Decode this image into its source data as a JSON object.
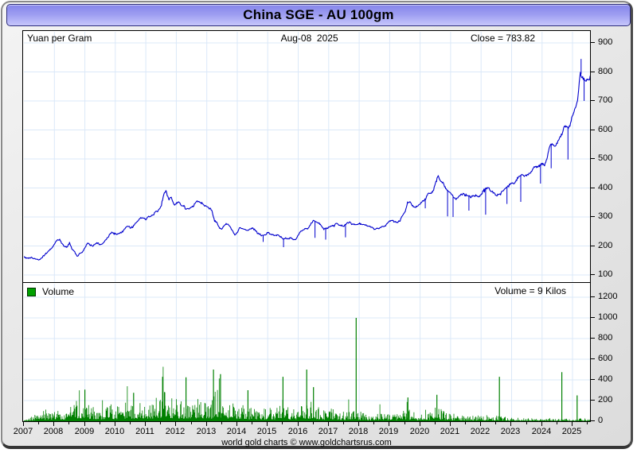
{
  "window": {
    "title": "China SGE - AU 100gm"
  },
  "price_panel": {
    "unit_label": "Yuan per Gram",
    "date_label": "Aug-08  2025",
    "close_label": "Close = 783.82"
  },
  "volume_panel": {
    "legend_label": "Volume",
    "value_label": "Volume = 9 Kilos"
  },
  "footer": {
    "copyright": "world gold charts © www.goldchartsrus.com"
  },
  "colors": {
    "line": "#0000cd",
    "volume": "#008000",
    "legend_square": "#00a000",
    "grid": "#dbe8f8",
    "panel_bg": "#ffffff",
    "frame_bg": "#e7e7e7",
    "title_gradient_top": "#8585ea",
    "title_gradient_bottom": "#c7c7fb"
  },
  "chart_data": [
    {
      "type": "line",
      "name": "SGE Au 100gm price",
      "title": "China SGE - AU 100gm",
      "ylabel": "Yuan per Gram",
      "date": "Aug-08 2025",
      "close": 783.82,
      "grid": true,
      "x_start": 2007.0,
      "x_end": 2025.58,
      "x_step_months": 1,
      "xticks": [
        2007,
        2008,
        2009,
        2010,
        2011,
        2012,
        2013,
        2014,
        2015,
        2016,
        2017,
        2018,
        2019,
        2020,
        2021,
        2022,
        2023,
        2024,
        2025
      ],
      "yticks": [
        100,
        200,
        300,
        400,
        500,
        600,
        700,
        800,
        900
      ],
      "ylim": [
        72,
        941
      ],
      "monthly_values": [
        162,
        159,
        157,
        160,
        156,
        153,
        152,
        158,
        168,
        177,
        184,
        192,
        205,
        219,
        222,
        208,
        198,
        196,
        212,
        188,
        180,
        163,
        173,
        179,
        193,
        211,
        204,
        198,
        206,
        210,
        204,
        208,
        218,
        228,
        244,
        247,
        242,
        240,
        245,
        251,
        263,
        270,
        262,
        266,
        278,
        288,
        296,
        299,
        292,
        300,
        305,
        308,
        319,
        322,
        336,
        376,
        390,
        361,
        368,
        342,
        346,
        352,
        340,
        337,
        325,
        330,
        332,
        340,
        357,
        352,
        348,
        341,
        337,
        330,
        324,
        288,
        281,
        262,
        258,
        272,
        277,
        268,
        255,
        238,
        248,
        263,
        261,
        257,
        252,
        258,
        262,
        255,
        244,
        240,
        235,
        237,
        247,
        242,
        238,
        237,
        238,
        233,
        222,
        226,
        224,
        229,
        222,
        223,
        238,
        252,
        257,
        260,
        262,
        278,
        288,
        282,
        280,
        272,
        258,
        261,
        264,
        270,
        271,
        277,
        272,
        270,
        268,
        278,
        282,
        276,
        274,
        272,
        277,
        275,
        272,
        270,
        268,
        264,
        258,
        260,
        262,
        266,
        268,
        277,
        286,
        288,
        284,
        282,
        286,
        304,
        317,
        348,
        352,
        338,
        333,
        336,
        346,
        352,
        361,
        378,
        382,
        386,
        412,
        442,
        421,
        417,
        398,
        390,
        381,
        370,
        362,
        368,
        378,
        380,
        372,
        374,
        368,
        372,
        376,
        370,
        376,
        392,
        399,
        398,
        388,
        384,
        374,
        378,
        386,
        394,
        402,
        408,
        417,
        414,
        428,
        440,
        447,
        442,
        444,
        452,
        460,
        472,
        470,
        476,
        481,
        478,
        502,
        547,
        552,
        542,
        558,
        571,
        592,
        617,
        608,
        614,
        650,
        673,
        698,
        800,
        779,
        768,
        772,
        783.82
      ],
      "spikes": [
        {
          "t": 2014.85,
          "v": 214
        },
        {
          "t": 2015.52,
          "v": 196
        },
        {
          "t": 2016.55,
          "v": 228
        },
        {
          "t": 2016.9,
          "v": 222
        },
        {
          "t": 2017.55,
          "v": 230
        },
        {
          "t": 2020.17,
          "v": 330
        },
        {
          "t": 2020.9,
          "v": 302
        },
        {
          "t": 2021.08,
          "v": 300
        },
        {
          "t": 2021.6,
          "v": 322
        },
        {
          "t": 2022.15,
          "v": 308
        },
        {
          "t": 2022.85,
          "v": 345
        },
        {
          "t": 2023.3,
          "v": 352
        },
        {
          "t": 2023.95,
          "v": 415
        },
        {
          "t": 2024.3,
          "v": 468
        },
        {
          "t": 2024.85,
          "v": 498
        },
        {
          "t": 2025.28,
          "v": 845
        },
        {
          "t": 2025.38,
          "v": 700
        }
      ]
    },
    {
      "type": "bar",
      "name": "Volume (kilos)",
      "legend": "Volume",
      "annotation": "Volume = 9 Kilos",
      "last_value": 9,
      "grid": true,
      "x_start": 2007.0,
      "x_end": 2025.58,
      "yticks": [
        0,
        200,
        400,
        600,
        800,
        1000,
        1200
      ],
      "ylim": [
        0,
        1345
      ],
      "monthly_base": [
        3,
        6,
        10,
        18,
        28,
        36,
        36,
        40,
        44,
        54,
        60,
        50,
        60,
        74,
        60,
        55,
        50,
        46,
        56,
        70,
        80,
        95,
        70,
        60,
        66,
        85,
        70,
        60,
        58,
        55,
        50,
        52,
        60,
        68,
        85,
        74,
        60,
        70,
        65,
        75,
        80,
        85,
        70,
        65,
        72,
        80,
        95,
        85,
        70,
        85,
        90,
        80,
        95,
        100,
        110,
        160,
        150,
        110,
        100,
        90,
        95,
        90,
        85,
        80,
        90,
        85,
        80,
        85,
        95,
        90,
        85,
        80,
        85,
        90,
        80,
        160,
        140,
        120,
        100,
        90,
        85,
        80,
        75,
        70,
        70,
        75,
        70,
        65,
        60,
        58,
        62,
        60,
        58,
        55,
        52,
        55,
        60,
        65,
        60,
        55,
        58,
        88,
        108,
        70,
        60,
        55,
        50,
        52,
        60,
        75,
        80,
        70,
        65,
        88,
        85,
        70,
        60,
        55,
        50,
        48,
        50,
        55,
        50,
        48,
        45,
        42,
        40,
        45,
        50,
        55,
        48,
        45,
        42,
        40,
        38,
        36,
        35,
        33,
        35,
        38,
        40,
        38,
        36,
        38,
        40,
        42,
        38,
        36,
        35,
        40,
        45,
        50,
        48,
        42,
        38,
        36,
        40,
        45,
        50,
        45,
        42,
        40,
        55,
        60,
        50,
        45,
        40,
        38,
        35,
        32,
        30,
        28,
        30,
        28,
        26,
        28,
        26,
        25,
        26,
        24,
        25,
        24,
        26,
        24,
        22,
        20,
        34,
        30,
        25,
        22,
        20,
        18,
        16,
        15,
        14,
        13,
        12,
        12,
        13,
        12,
        12,
        11,
        10,
        10,
        10,
        10,
        11,
        14,
        12,
        10,
        12,
        10,
        10,
        12,
        10,
        9,
        10,
        9,
        10,
        14,
        10,
        8,
        8,
        9
      ],
      "spikes": [
        {
          "t": 2009.0,
          "v": 305
        },
        {
          "t": 2010.6,
          "v": 275
        },
        {
          "t": 2011.55,
          "v": 430
        },
        {
          "t": 2012.32,
          "v": 425
        },
        {
          "t": 2013.22,
          "v": 500
        },
        {
          "t": 2013.45,
          "v": 455
        },
        {
          "t": 2014.35,
          "v": 300
        },
        {
          "t": 2015.5,
          "v": 430
        },
        {
          "t": 2016.28,
          "v": 500
        },
        {
          "t": 2016.5,
          "v": 330
        },
        {
          "t": 2017.9,
          "v": 1000
        },
        {
          "t": 2019.6,
          "v": 230
        },
        {
          "t": 2020.55,
          "v": 255
        },
        {
          "t": 2022.6,
          "v": 430
        },
        {
          "t": 2024.65,
          "v": 475
        },
        {
          "t": 2025.15,
          "v": 250
        }
      ]
    }
  ]
}
